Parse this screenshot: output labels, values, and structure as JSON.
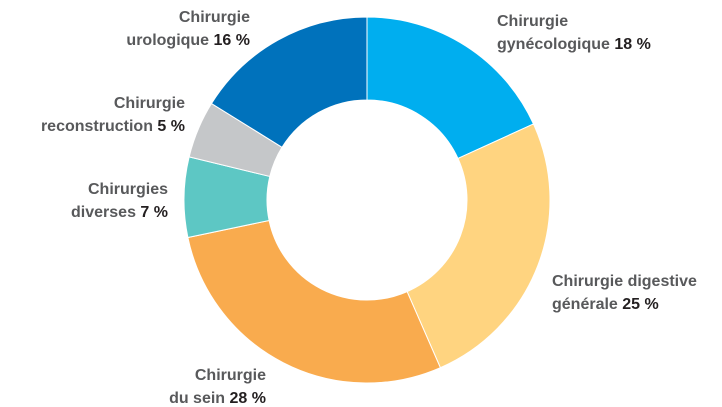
{
  "chart_data": {
    "type": "donut",
    "categories": [
      [
        "Chirurgie",
        "gynécologique"
      ],
      [
        "Chirurgie digestive",
        "générale"
      ],
      [
        "Chirurgie",
        "du sein"
      ],
      [
        "Chirurgies",
        "diverses"
      ],
      [
        "Chirurgie",
        "reconstruction"
      ],
      [
        "Chirurgie",
        "urologique"
      ]
    ],
    "values": [
      18,
      25,
      28,
      7,
      5,
      16
    ],
    "value_labels": [
      "18 %",
      "25 %",
      "28 %",
      "7 %",
      "5 %",
      "16 %"
    ],
    "colors": [
      "#00aeef",
      "#ffd480",
      "#f9ab4e",
      "#5dc7c4",
      "#c5c7c9",
      "#0072bc"
    ]
  }
}
